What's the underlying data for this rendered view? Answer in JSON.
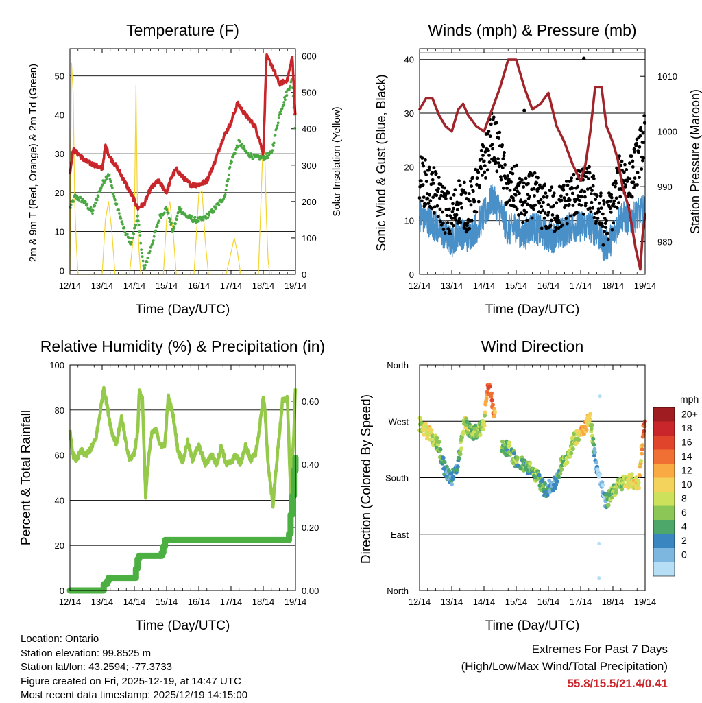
{
  "chart_data": [
    {
      "id": "temp",
      "type": "line",
      "title": "Temperature (F)",
      "xlabel": "Time (Day/UTC)",
      "ylabel_left": "2m & 9m T (Red, Orange) & 2m Td (Green)",
      "ylabel_right": "Solar Insolation (Yellow)",
      "x_ticks": [
        "12/14",
        "13/14",
        "14/14",
        "15/14",
        "16/14",
        "17/14",
        "18/14",
        "19/14"
      ],
      "xlim": [
        0,
        7
      ],
      "ylim_left": [
        -1,
        57
      ],
      "yticks_left": [
        0,
        10,
        20,
        30,
        40,
        50
      ],
      "ylim_right": [
        0,
        620
      ],
      "yticks_right": [
        0,
        100,
        200,
        300,
        400,
        500,
        600
      ],
      "series": [
        {
          "name": "2m T",
          "color": "#c8262b",
          "axis": "left",
          "x": [
            0,
            0.1,
            0.25,
            0.5,
            0.8,
            1.0,
            1.1,
            1.25,
            1.5,
            1.75,
            2.0,
            2.1,
            2.3,
            2.5,
            2.75,
            3.0,
            3.15,
            3.3,
            3.5,
            3.75,
            4.0,
            4.25,
            4.5,
            4.75,
            5.0,
            5.2,
            5.45,
            5.75,
            5.9,
            6.0,
            6.1,
            6.25,
            6.5,
            6.75,
            6.9,
            7.0
          ],
          "values": [
            25,
            31,
            30,
            28,
            27,
            26,
            32,
            29,
            26,
            22,
            18,
            16,
            17,
            21,
            23,
            20,
            24,
            26,
            24,
            22,
            22,
            23,
            28,
            34,
            38,
            43,
            40,
            37,
            33,
            30,
            55,
            53,
            48,
            49,
            55,
            39
          ]
        },
        {
          "name": "2m Td",
          "color": "#4aa843",
          "axis": "left",
          "x": [
            0,
            0.15,
            0.4,
            0.7,
            0.9,
            1.05,
            1.2,
            1.4,
            1.7,
            1.9,
            2.1,
            2.3,
            2.55,
            2.8,
            3.0,
            3.2,
            3.4,
            3.6,
            3.85,
            4.1,
            4.4,
            4.6,
            4.8,
            5.0,
            5.25,
            5.5,
            5.75,
            6.0,
            6.25,
            6.5,
            6.7,
            6.9,
            7.0
          ],
          "values": [
            16,
            19,
            18,
            15,
            20,
            23,
            25,
            18,
            10,
            7,
            14,
            0,
            7,
            14,
            16,
            10,
            16,
            14,
            13,
            13,
            15,
            17,
            19,
            28,
            33,
            30,
            29,
            29,
            30,
            40,
            45,
            49,
            35
          ]
        },
        {
          "name": "Solar Insolation",
          "color": "#f4d431",
          "axis": "right",
          "x": [
            0,
            0.05,
            0.1,
            0.15,
            0.2,
            0.25,
            1.0,
            1.1,
            1.2,
            1.3,
            1.4,
            1.85,
            2.0,
            2.05,
            2.1,
            2.15,
            2.2,
            2.9,
            3.0,
            3.1,
            3.2,
            3.3,
            3.85,
            4.0,
            4.1,
            4.2,
            4.3,
            4.85,
            5.0,
            5.1,
            5.2,
            5.3,
            5.85,
            6.0,
            6.05,
            6.1,
            6.15,
            6.2
          ],
          "values": [
            0,
            580,
            500,
            200,
            80,
            0,
            0,
            150,
            200,
            120,
            0,
            0,
            130,
            520,
            150,
            60,
            0,
            0,
            150,
            200,
            120,
            0,
            0,
            220,
            230,
            90,
            0,
            0,
            60,
            100,
            60,
            0,
            0,
            380,
            330,
            150,
            40,
            0
          ]
        }
      ]
    },
    {
      "id": "wind",
      "type": "scatter",
      "title": "Winds (mph) & Pressure (mb)",
      "xlabel": "Time (Day/UTC)",
      "ylabel_left": "Sonic Wind & Gust (Blue, Black)",
      "ylabel_right": "Station Pressure (Maroon)",
      "x_ticks": [
        "12/14",
        "13/14",
        "14/14",
        "15/14",
        "16/14",
        "17/14",
        "18/14",
        "19/14"
      ],
      "xlim": [
        0,
        7
      ],
      "ylim_left": [
        0,
        42
      ],
      "yticks_left": [
        0,
        10,
        20,
        30,
        40
      ],
      "ylim_right": [
        974.1,
        1015
      ],
      "yticks_right": [
        980,
        990,
        1000,
        1010
      ],
      "wind_profile_x": [
        0,
        0.5,
        1.0,
        1.2,
        1.5,
        1.8,
        2.0,
        2.25,
        2.5,
        2.75,
        3.0,
        3.2,
        3.5,
        3.75,
        4.0,
        4.25,
        4.5,
        4.75,
        5.0,
        5.25,
        5.5,
        5.75,
        6.0,
        6.25,
        6.5,
        6.75,
        7.0
      ],
      "wind_mean": [
        11,
        9,
        6,
        8,
        7,
        9,
        11,
        14,
        12,
        8,
        9,
        7,
        9,
        8,
        7,
        7,
        8,
        9,
        9,
        9,
        8,
        5,
        7,
        11,
        10,
        11,
        12
      ],
      "gust_mean": [
        18,
        15,
        10,
        14,
        12,
        16,
        21,
        26,
        22,
        15,
        16,
        13,
        15,
        13,
        12,
        12,
        13,
        15,
        15,
        16,
        13,
        9,
        13,
        19,
        17,
        21,
        26
      ],
      "pressure": {
        "name": "Station Pressure",
        "color": "#a0242a",
        "x": [
          0,
          0.2,
          0.4,
          0.6,
          0.8,
          1.0,
          1.2,
          1.35,
          1.5,
          1.75,
          2.0,
          2.25,
          2.5,
          2.75,
          3.0,
          3.25,
          3.5,
          3.75,
          4.0,
          4.25,
          4.5,
          4.75,
          5.0,
          5.15,
          5.3,
          5.45,
          5.65,
          5.8,
          6.0,
          6.15,
          6.3,
          6.5,
          6.7,
          6.85,
          6.92,
          7.0
        ],
        "values": [
          1004,
          1006,
          1006,
          1003,
          1001,
          1000,
          1004,
          1005,
          1003,
          1001,
          1000,
          1004,
          1008,
          1013,
          1013,
          1008,
          1004,
          1005,
          1007,
          1001,
          998,
          994,
          991,
          994,
          1000,
          1008,
          1008,
          1001,
          998,
          995,
          990,
          986,
          979,
          975,
          981,
          985
        ]
      },
      "notable_points": [
        {
          "x": 5.1,
          "y": 40.2
        },
        {
          "x": 3.25,
          "y": 30.5
        },
        {
          "x": 4.9,
          "y": 14.0
        }
      ]
    },
    {
      "id": "rh",
      "type": "line",
      "title": "Relative Humidity (%) & Precipitation (in)",
      "xlabel": "Time (Day/UTC)",
      "ylabel_left": "Percent & Total Rainfall",
      "x_ticks": [
        "12/14",
        "13/14",
        "14/14",
        "15/14",
        "16/14",
        "17/14",
        "18/14",
        "19/14"
      ],
      "xlim": [
        0,
        7
      ],
      "ylim_left": [
        0,
        100
      ],
      "yticks_left": [
        0,
        20,
        40,
        60,
        80,
        100
      ],
      "ylim_right": [
        0,
        0.715
      ],
      "yticks_right_labels": [
        "0.00",
        "0.20",
        "0.40",
        "0.60"
      ],
      "yticks_right": [
        0,
        0.2,
        0.4,
        0.6
      ],
      "series": [
        {
          "name": "Relative Humidity",
          "color": "#95c94a",
          "axis": "left",
          "x": [
            0,
            0.1,
            0.2,
            0.35,
            0.5,
            0.65,
            0.8,
            0.95,
            1.05,
            1.15,
            1.3,
            1.45,
            1.6,
            1.75,
            1.85,
            2.0,
            2.1,
            2.15,
            2.25,
            2.35,
            2.45,
            2.55,
            2.7,
            2.8,
            2.95,
            3.05,
            3.2,
            3.35,
            3.5,
            3.65,
            3.8,
            4.0,
            4.2,
            4.4,
            4.55,
            4.7,
            4.85,
            5.0,
            5.15,
            5.3,
            5.45,
            5.6,
            5.75,
            5.85,
            6.0,
            6.05,
            6.15,
            6.3,
            6.45,
            6.6,
            6.75,
            6.85,
            6.95,
            7.0
          ],
          "values": [
            70,
            60,
            58,
            62,
            60,
            63,
            67,
            80,
            90,
            82,
            70,
            65,
            77,
            64,
            58,
            61,
            70,
            88,
            85,
            42,
            60,
            70,
            71,
            64,
            65,
            86,
            78,
            62,
            57,
            66,
            58,
            64,
            56,
            60,
            56,
            64,
            56,
            57,
            60,
            56,
            64,
            58,
            60,
            68,
            86,
            80,
            56,
            38,
            62,
            84,
            85,
            42,
            70,
            90
          ]
        },
        {
          "name": "Total Precipitation",
          "color": "#4caf41",
          "axis": "right",
          "x": [
            0,
            1.0,
            1.05,
            1.15,
            1.2,
            2.0,
            2.05,
            2.1,
            2.15,
            2.2,
            2.8,
            2.85,
            2.9,
            2.95,
            3.0,
            6.75,
            6.8,
            6.85,
            6.9,
            6.95,
            7.0
          ],
          "values": [
            0,
            0,
            0.02,
            0.03,
            0.04,
            0.04,
            0.07,
            0.1,
            0.11,
            0.11,
            0.11,
            0.12,
            0.14,
            0.16,
            0.16,
            0.16,
            0.18,
            0.24,
            0.3,
            0.38,
            0.42
          ]
        }
      ]
    },
    {
      "id": "dir",
      "type": "scatter",
      "title": "Wind Direction",
      "xlabel": "Time (Day/UTC)",
      "ylabel_left": "Direction (Colored By Speed)",
      "x_ticks": [
        "12/14",
        "13/14",
        "14/14",
        "15/14",
        "16/14",
        "17/14",
        "18/14",
        "19/14"
      ],
      "xlim": [
        0,
        7
      ],
      "ylim": [
        0,
        360
      ],
      "ytick_labels": [
        "North",
        "East",
        "South",
        "West",
        "North"
      ],
      "yticks": [
        0,
        90,
        180,
        270,
        360
      ],
      "direction_profile_x": [
        0,
        0.3,
        0.6,
        0.8,
        1.0,
        1.2,
        1.4,
        1.6,
        1.8,
        2.0,
        2.1,
        2.2,
        2.5,
        2.8,
        3.0,
        3.3,
        3.6,
        3.9,
        4.2,
        4.4,
        4.6,
        4.8,
        5.0,
        5.1,
        5.3,
        5.45,
        5.55,
        5.65,
        5.75,
        5.85,
        6.0,
        6.2,
        6.4,
        6.6,
        6.8,
        6.95,
        7.0
      ],
      "direction_mean": [
        265,
        250,
        230,
        190,
        180,
        200,
        270,
        250,
        255,
        265,
        320,
        318,
        230,
        225,
        205,
        200,
        185,
        160,
        170,
        200,
        215,
        240,
        255,
        260,
        275,
        210,
        185,
        170,
        140,
        145,
        160,
        168,
        175,
        175,
        168,
        260,
        265
      ],
      "speed_mean": [
        10,
        13,
        8,
        5,
        4,
        7,
        11,
        9,
        9,
        10,
        18,
        19,
        9,
        8,
        8,
        7,
        9,
        6,
        4,
        8,
        9,
        10,
        13,
        16,
        12,
        4,
        2,
        3,
        3,
        9,
        9,
        10,
        11,
        12,
        12,
        16,
        18
      ],
      "outlier_points": [
        {
          "x": 5.57,
          "y": 20
        },
        {
          "x": 5.57,
          "y": 75
        },
        {
          "x": 5.6,
          "y": 310
        }
      ],
      "colorbar": {
        "title": "mph",
        "labels": [
          "20+",
          "18",
          "16",
          "14",
          "12",
          "10",
          "8",
          "6",
          "4",
          "2",
          "0"
        ],
        "colors": [
          "#9f1d20",
          "#c8262b",
          "#e0452c",
          "#f06f33",
          "#f9aa42",
          "#f4d35c",
          "#cde25a",
          "#8cc656",
          "#4da76a",
          "#3a86c0",
          "#7db7e0",
          "#b6def4"
        ]
      }
    }
  ],
  "footer": {
    "location": "Location: Ontario",
    "elevation": "Station elevation: 99.8525 m",
    "latlon": "Station lat/lon: 43.2594; -77.3733",
    "created": "Figure created on Fri, 2025-12-19, at 14:47 UTC",
    "recent": "Most recent data timestamp: 2025/12/19 14:15:00",
    "extremes_title": "Extremes For Past 7 Days",
    "extremes_sub": "(High/Low/Max Wind/Total Precipitation)",
    "extremes_values": "55.8/15.5/21.4/0.41"
  }
}
